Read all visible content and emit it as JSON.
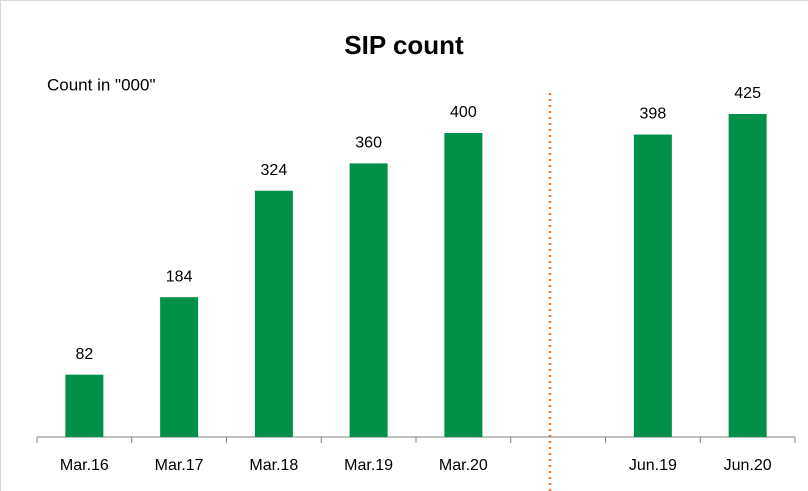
{
  "chart_data": {
    "type": "bar",
    "title": "SIP count",
    "subtitle": "Count in \"000\"",
    "categories": [
      "Mar.16",
      "Mar.17",
      "Mar.18",
      "Mar.19",
      "Mar.20",
      null,
      "Jun.19",
      "Jun.20"
    ],
    "values": [
      82,
      184,
      324,
      360,
      400,
      null,
      398,
      425
    ],
    "color": "#00904a",
    "ylim": [
      0,
      450
    ]
  }
}
